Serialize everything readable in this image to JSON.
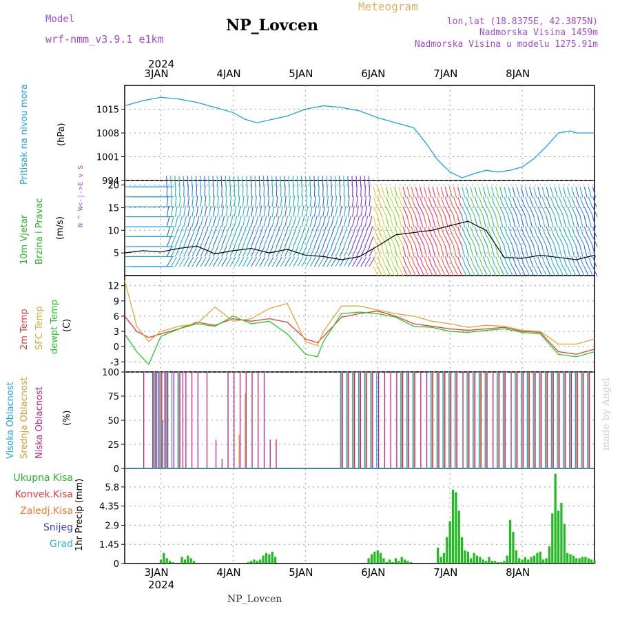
{
  "header": {
    "title": "NP_Lovcen",
    "model_label": "Model",
    "model_name": "wrf-nmm_v3.9.1 e1km",
    "meteogram_label": "Meteogram",
    "coords": "lon,lat (18.8375E, 42.3875N)",
    "elevation": "Nadmorska Visina 1459m",
    "model_elevation": "Nadmorska Visina u modelu 1275.91m",
    "footer": "NP_Lovcen",
    "watermark": "made by Angel",
    "colors": {
      "title": "#000000",
      "model": "#a64ad6",
      "meteogram": "#e0b060",
      "coords": "#a64ad6"
    }
  },
  "time_axis": {
    "year": "2024",
    "days": [
      "3JAN",
      "4JAN",
      "5JAN",
      "6JAN",
      "7JAN",
      "8JAN"
    ],
    "day_positions_hours": [
      12,
      36,
      60,
      84,
      108,
      132
    ],
    "total_hours": 156
  },
  "panels": {
    "pressure": {
      "label": "Pritisak na nivou mora",
      "unit": "(hPa)",
      "label_color": "#1aa3e8"
    },
    "wind": {
      "label1": "10m Vjetar",
      "label2": "Brzina i Pravac",
      "unit": "(m/s)",
      "compass": "N ^ W<-|->E v S",
      "label_color": "#22bb22"
    },
    "temperature": {
      "label_2m": "2m Temp",
      "label_sfc": "SFC Temp",
      "label_dew": "dewpt Temp",
      "unit": "(C)",
      "colors": {
        "t2m": "#e83a3a",
        "sfc": "#e0a83a",
        "dew": "#22cc22"
      }
    },
    "cloud": {
      "label_high": "Visoka Oblacnost",
      "label_mid": "Srednja Oblacnost",
      "label_low": "Niska Oblacnost",
      "unit": "(%)",
      "colors": {
        "high": "#1aa3e8",
        "mid": "#d4a030",
        "low": "#c0208a"
      }
    },
    "precip": {
      "legend": [
        "Ukupna Kisa",
        "Konvek.Kisa",
        "Zaledj.Kisa",
        "Snijeg",
        "Grad"
      ],
      "legend_colors": [
        "#22bb22",
        "#e83a3a",
        "#f07a2a",
        "#3a3ae8",
        "#20c0c0"
      ],
      "ylabel": "1hr Precip (mm)"
    }
  },
  "chart_data": [
    {
      "type": "line",
      "name": "pressure",
      "ylabel": "(hPa)",
      "ylim": [
        994,
        1022
      ],
      "yticks": [
        994,
        1001,
        1008,
        1015
      ],
      "x": [
        0,
        6,
        12,
        18,
        24,
        30,
        36,
        40,
        44,
        48,
        54,
        60,
        66,
        72,
        78,
        84,
        90,
        96,
        100,
        104,
        108,
        112,
        116,
        120,
        124,
        128,
        132,
        136,
        140,
        144,
        148,
        150,
        156
      ],
      "series": [
        {
          "name": "Pritisak na nivou mora",
          "color": "#1aa3e8",
          "values": [
            1016,
            1017.5,
            1018.5,
            1018,
            1017,
            1015.5,
            1014,
            1012,
            1011,
            1011.8,
            1013,
            1015,
            1016,
            1015.5,
            1014.5,
            1012.5,
            1011,
            1009.5,
            1005,
            1000,
            996.5,
            994.8,
            996,
            997,
            996.5,
            997,
            998,
            1000.5,
            1004,
            1008,
            1008.6,
            1008,
            1008
          ]
        }
      ]
    },
    {
      "type": "line",
      "name": "wind_speed",
      "ylabel": "(m/s)",
      "ylim": [
        0,
        21
      ],
      "yticks": [
        5,
        10,
        15,
        20
      ],
      "x": [
        0,
        6,
        12,
        18,
        24,
        30,
        36,
        42,
        48,
        54,
        60,
        66,
        72,
        78,
        84,
        90,
        96,
        102,
        108,
        114,
        120,
        126,
        132,
        138,
        144,
        150,
        156
      ],
      "series": [
        {
          "name": "10m Vjetar",
          "color": "#000000",
          "values": [
            5,
            5.5,
            5.2,
            6,
            6.5,
            4.8,
            5.5,
            6,
            5,
            5.8,
            4.5,
            4.2,
            3.5,
            4.2,
            6.5,
            9,
            9.5,
            10,
            11,
            12,
            10,
            4,
            3.8,
            4.5,
            4,
            3.5,
            4.5
          ]
        }
      ]
    },
    {
      "type": "line",
      "name": "temperature",
      "ylabel": "(C)",
      "ylim": [
        -5,
        14
      ],
      "yticks": [
        -3,
        0,
        3,
        6,
        9,
        12
      ],
      "x": [
        0,
        4,
        8,
        12,
        18,
        24,
        30,
        36,
        42,
        48,
        54,
        60,
        64,
        66,
        72,
        78,
        84,
        90,
        96,
        102,
        108,
        114,
        120,
        126,
        132,
        138,
        144,
        150,
        156
      ],
      "series": [
        {
          "name": "2m Temp",
          "color": "#e83a3a",
          "values": [
            6,
            3,
            1.8,
            2.5,
            3.5,
            4.8,
            4.2,
            5.5,
            5,
            5.5,
            4.8,
            1.5,
            0.8,
            2,
            5.8,
            6.5,
            7,
            6,
            4.5,
            4,
            3.5,
            3.2,
            3.5,
            3.8,
            3,
            2.8,
            -1,
            -1.5,
            -0.5
          ]
        },
        {
          "name": "SFC Temp",
          "color": "#e0a83a",
          "values": [
            13,
            4,
            1,
            3,
            4,
            4.5,
            7.8,
            5,
            5.5,
            7.5,
            8.5,
            1,
            0.2,
            3,
            8,
            8,
            7.2,
            6.5,
            6,
            5,
            4.5,
            3.8,
            4.2,
            4,
            3.2,
            3,
            0.5,
            0.5,
            1.5
          ]
        },
        {
          "name": "dewpt Temp",
          "color": "#22cc22",
          "values": [
            2.5,
            -1,
            -3.5,
            2,
            3.5,
            4.5,
            4,
            6,
            4.5,
            5,
            2.5,
            -1.5,
            -2,
            1,
            6.5,
            6.8,
            6.5,
            5.8,
            4,
            3.8,
            3,
            2.8,
            3.2,
            3.5,
            2.8,
            2.5,
            -1.5,
            -2,
            -1
          ]
        }
      ]
    },
    {
      "type": "bar",
      "name": "cloud_cover",
      "ylabel": "(%)",
      "ylim": [
        0,
        100
      ],
      "yticks": [
        0,
        25,
        50,
        75,
        100
      ],
      "x": [
        3,
        6,
        9,
        10,
        11,
        12,
        13,
        14,
        16,
        18,
        19,
        20,
        22,
        24,
        27,
        30,
        32,
        34,
        36,
        38,
        40,
        42,
        44,
        46,
        48,
        50,
        52,
        54,
        56,
        72,
        74,
        76,
        78,
        80,
        82,
        84,
        86,
        88,
        90,
        92,
        94,
        96,
        98,
        100,
        102,
        104,
        106,
        108,
        110,
        112,
        114,
        116,
        118,
        120,
        122,
        124,
        126,
        128,
        130,
        132,
        134,
        136,
        138,
        140,
        142,
        144,
        146,
        148,
        150,
        152,
        154
      ],
      "series": [
        {
          "name": "Visoka Oblacnost",
          "values": [
            0,
            0,
            0,
            100,
            100,
            100,
            50,
            100,
            100,
            100,
            0,
            0,
            0,
            0,
            0,
            0,
            0,
            0,
            0,
            0,
            0,
            0,
            0,
            0,
            0,
            0,
            0,
            0,
            0,
            100,
            100,
            100,
            100,
            100,
            100,
            100,
            0,
            0,
            0,
            100,
            100,
            100,
            0,
            0,
            100,
            100,
            100,
            100,
            100,
            0,
            100,
            100,
            100,
            100,
            0,
            100,
            100,
            0,
            100,
            100,
            100,
            100,
            100,
            100,
            100,
            100,
            100,
            100,
            100,
            100,
            100
          ]
        },
        {
          "name": "Srednja Oblacnost",
          "values": [
            0,
            0,
            0,
            100,
            0,
            100,
            0,
            100,
            0,
            100,
            0,
            0,
            0,
            0,
            0,
            0,
            0,
            0,
            0,
            35,
            78,
            0,
            0,
            0,
            0,
            0,
            0,
            0,
            0,
            100,
            100,
            100,
            100,
            100,
            100,
            0,
            0,
            0,
            0,
            100,
            100,
            100,
            0,
            0,
            100,
            100,
            100,
            100,
            100,
            0,
            100,
            100,
            100,
            100,
            0,
            100,
            100,
            0,
            100,
            100,
            100,
            100,
            100,
            100,
            100,
            100,
            100,
            100,
            100,
            100,
            100
          ]
        },
        {
          "name": "Niska Oblacnost",
          "values": [
            0,
            100,
            100,
            100,
            100,
            100,
            100,
            100,
            100,
            100,
            100,
            100,
            100,
            100,
            100,
            30,
            10,
            100,
            100,
            100,
            100,
            100,
            100,
            100,
            30,
            30,
            0,
            0,
            0,
            100,
            100,
            100,
            100,
            100,
            100,
            100,
            100,
            100,
            100,
            100,
            100,
            100,
            100,
            100,
            100,
            100,
            100,
            100,
            100,
            100,
            100,
            100,
            100,
            100,
            100,
            100,
            100,
            100,
            100,
            100,
            100,
            100,
            100,
            100,
            100,
            100,
            100,
            100,
            100,
            100,
            100
          ]
        }
      ]
    },
    {
      "type": "bar",
      "name": "precip",
      "ylabel": "1hr Precip (mm)",
      "ylim": [
        0,
        7.2
      ],
      "yticks": [
        0,
        1.45,
        2.9,
        4.35,
        5.8
      ],
      "x": [
        12,
        13,
        14,
        15,
        16,
        19,
        20,
        21,
        22,
        23,
        41,
        42,
        43,
        44,
        45,
        46,
        47,
        48,
        49,
        50,
        81,
        82,
        83,
        84,
        85,
        86,
        87,
        88,
        89,
        90,
        91,
        92,
        93,
        94,
        95,
        104,
        105,
        106,
        107,
        108,
        109,
        110,
        111,
        112,
        113,
        114,
        115,
        116,
        117,
        118,
        119,
        120,
        121,
        122,
        123,
        124,
        125,
        126,
        127,
        128,
        129,
        130,
        131,
        132,
        133,
        134,
        135,
        136,
        137,
        138,
        139,
        140,
        141,
        142,
        143,
        144,
        145,
        146,
        147,
        148,
        149,
        150,
        151,
        152,
        153,
        154,
        155,
        156
      ],
      "series": [
        {
          "name": "Ukupna Kisa",
          "color": "#22bb22",
          "values": [
            0.3,
            0.8,
            0.4,
            0.2,
            0.1,
            0.5,
            0.3,
            0.6,
            0.4,
            0.2,
            0.1,
            0.2,
            0.3,
            0.2,
            0.3,
            0.6,
            0.8,
            0.7,
            0.9,
            0.5,
            0.4,
            0.7,
            0.9,
            1.0,
            0.8,
            0.4,
            0.1,
            0.3,
            0.1,
            0.4,
            0.2,
            0.5,
            0.3,
            0.2,
            0.1,
            1.2,
            0.5,
            0.8,
            2.0,
            3.2,
            5.6,
            5.4,
            4.0,
            2.0,
            1.0,
            0.9,
            0.4,
            0.8,
            0.6,
            0.5,
            0.3,
            0.2,
            0.5,
            0.2,
            0.2,
            0.1,
            0.1,
            0.2,
            0.6,
            3.3,
            2.4,
            1.0,
            0.4,
            0.3,
            0.5,
            0.3,
            0.5,
            0.6,
            0.8,
            0.9,
            0.3,
            0.4,
            1.3,
            3.8,
            6.8,
            4.0,
            4.6,
            3.0,
            0.8,
            0.7,
            0.6,
            0.4,
            0.4,
            0.5,
            0.5,
            0.4,
            0.3,
            0.2
          ]
        }
      ]
    }
  ]
}
